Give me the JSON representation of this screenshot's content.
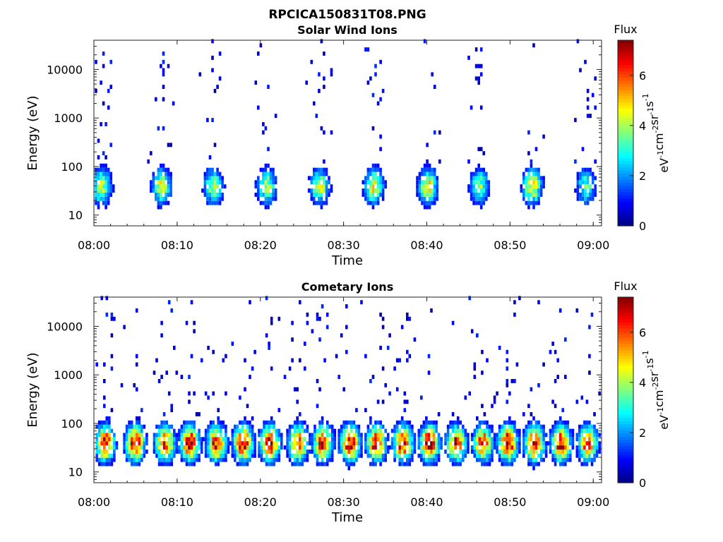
{
  "figure_title": "RPCICA150831T08.PNG",
  "chart_data": [
    {
      "type": "heatmap",
      "title": "Solar Wind Ions",
      "xlabel": "Time",
      "ylabel": "Energy (eV)",
      "x_ticks": [
        "08:00",
        "08:10",
        "08:20",
        "08:30",
        "08:40",
        "08:50",
        "09:00"
      ],
      "y_ticks": [
        "10",
        "100",
        "1000",
        "10000"
      ],
      "y_scale": "log",
      "ylim": [
        6,
        40000
      ],
      "xlim": [
        "08:00",
        "09:01"
      ],
      "colorbar": {
        "title": "Flux",
        "label": "eV-1 cm-2 sr-1 s-1",
        "ticks": [
          "0",
          "2",
          "4",
          "6"
        ],
        "range": [
          0,
          7.4
        ],
        "colormap": "jet"
      },
      "bursts": [
        {
          "t_min": 0.8,
          "flux": 4.3
        },
        {
          "t_min": 8.0,
          "flux": 4.3
        },
        {
          "t_min": 14.2,
          "flux": 4.0
        },
        {
          "t_min": 20.6,
          "flux": 4.1
        },
        {
          "t_min": 27.0,
          "flux": 4.2
        },
        {
          "t_min": 33.5,
          "flux": 4.6
        },
        {
          "t_min": 40.0,
          "flux": 4.6
        },
        {
          "t_min": 46.2,
          "flux": 3.8
        },
        {
          "t_min": 52.5,
          "flux": 4.8
        },
        {
          "t_min": 59.0,
          "flux": 3.4
        }
      ]
    },
    {
      "type": "heatmap",
      "title": "Cometary Ions",
      "xlabel": "Time",
      "ylabel": "Energy (eV)",
      "x_ticks": [
        "08:00",
        "08:10",
        "08:20",
        "08:30",
        "08:40",
        "08:50",
        "09:00"
      ],
      "y_ticks": [
        "10",
        "100",
        "1000",
        "10000"
      ],
      "y_scale": "log",
      "ylim": [
        6,
        40000
      ],
      "xlim": [
        "08:00",
        "09:01"
      ],
      "colorbar": {
        "title": "Flux",
        "label": "eV-1 cm-2 sr-1 s-1",
        "ticks": [
          "0",
          "2",
          "4",
          "6"
        ],
        "range": [
          0,
          7.4
        ],
        "colormap": "jet"
      },
      "bursts": [
        {
          "t_min": 1.2,
          "flux": 6.5
        },
        {
          "t_min": 4.8,
          "flux": 6.8
        },
        {
          "t_min": 8.4,
          "flux": 6.2
        },
        {
          "t_min": 11.4,
          "flux": 6.9
        },
        {
          "t_min": 14.6,
          "flux": 6.6
        },
        {
          "t_min": 17.8,
          "flux": 7.0
        },
        {
          "t_min": 21.0,
          "flux": 6.8
        },
        {
          "t_min": 24.4,
          "flux": 6.6
        },
        {
          "t_min": 27.4,
          "flux": 6.4
        },
        {
          "t_min": 30.6,
          "flux": 7.1
        },
        {
          "t_min": 33.8,
          "flux": 6.8
        },
        {
          "t_min": 37.0,
          "flux": 7.0
        },
        {
          "t_min": 40.2,
          "flux": 7.1
        },
        {
          "t_min": 43.4,
          "flux": 6.4
        },
        {
          "t_min": 46.6,
          "flux": 6.3
        },
        {
          "t_min": 49.6,
          "flux": 7.1
        },
        {
          "t_min": 52.8,
          "flux": 6.9
        },
        {
          "t_min": 56.0,
          "flux": 7.0
        },
        {
          "t_min": 59.2,
          "flux": 6.2
        }
      ]
    }
  ]
}
